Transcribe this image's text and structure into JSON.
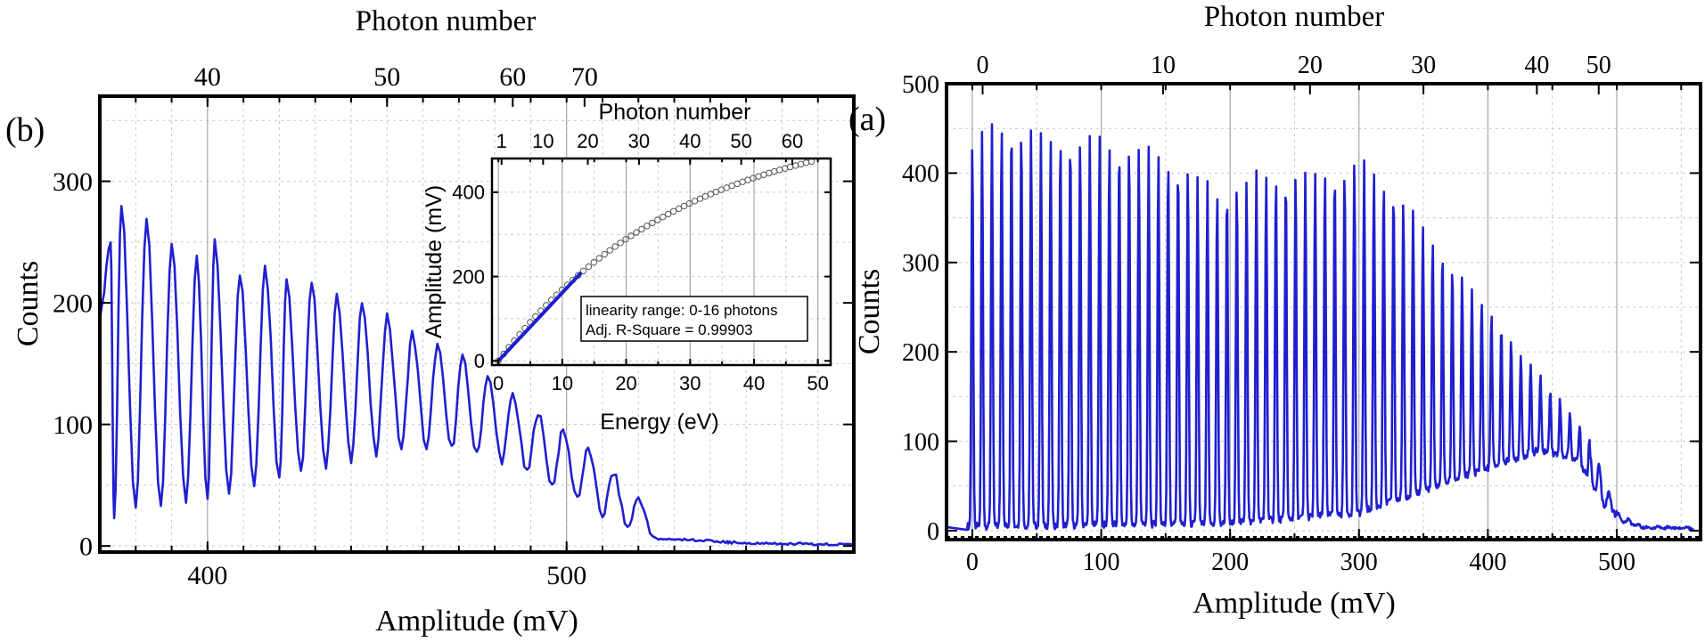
{
  "chart_data": [
    {
      "panel": "(b)",
      "type": "line",
      "xlabel": "Amplitude (mV)",
      "ylabel": "Counts",
      "top_axis_label": "Photon number",
      "xlim": [
        370,
        580
      ],
      "ylim": [
        -5,
        370
      ],
      "xticks": [
        400,
        500
      ],
      "yticks": [
        0,
        100,
        200,
        300
      ],
      "top_ticks": [
        {
          "label": "40",
          "x": 400
        },
        {
          "label": "50",
          "x": 450
        },
        {
          "label": "60",
          "x": 485
        },
        {
          "label": "70",
          "x": 505
        }
      ],
      "series": [
        {
          "name": "Counts",
          "color": "#1f1fd0",
          "peak_spacing_mV": 7.0,
          "first_peak_mV": 376,
          "peaks": [
            [
              373,
              250
            ],
            [
              376,
              280
            ],
            [
              383,
              270
            ],
            [
              390,
              248
            ],
            [
              397,
              237
            ],
            [
              402,
              250
            ],
            [
              409,
              225
            ],
            [
              416,
              230
            ],
            [
              422,
              220
            ],
            [
              429,
              215
            ],
            [
              436,
              205
            ],
            [
              443,
              200
            ],
            [
              450,
              190
            ],
            [
              457,
              175
            ],
            [
              464,
              165
            ],
            [
              471,
              155
            ],
            [
              478,
              140
            ],
            [
              485,
              125
            ],
            [
              492,
              110
            ],
            [
              499,
              95
            ],
            [
              506,
              80
            ],
            [
              513,
              60
            ],
            [
              520,
              40
            ]
          ],
          "valleys": [
            [
              370,
              190
            ],
            [
              374,
              20
            ],
            [
              380,
              30
            ],
            [
              387,
              30
            ],
            [
              394,
              35
            ],
            [
              400,
              40
            ],
            [
              406,
              45
            ],
            [
              413,
              50
            ],
            [
              420,
              55
            ],
            [
              426,
              60
            ],
            [
              433,
              65
            ],
            [
              440,
              70
            ],
            [
              447,
              75
            ],
            [
              454,
              80
            ],
            [
              461,
              80
            ],
            [
              468,
              80
            ],
            [
              475,
              75
            ],
            [
              482,
              70
            ],
            [
              489,
              60
            ],
            [
              496,
              50
            ],
            [
              503,
              40
            ],
            [
              510,
              25
            ],
            [
              517,
              15
            ],
            [
              524,
              8
            ]
          ],
          "tail": [
            [
              530,
              5
            ],
            [
              545,
              2
            ],
            [
              560,
              1
            ],
            [
              580,
              0
            ]
          ]
        }
      ],
      "inset": {
        "type": "scatter",
        "xlabel": "Energy (eV)",
        "ylabel": "Amplitude (mV)",
        "top_axis_label": "Photon number",
        "xlim": [
          -1,
          52
        ],
        "ylim": [
          -10,
          480
        ],
        "xticks": [
          0,
          10,
          20,
          30,
          40,
          50
        ],
        "yticks": [
          0,
          200,
          400
        ],
        "top_ticks": [
          {
            "label": "1",
            "x": 0.5
          },
          {
            "label": "10",
            "x": 7
          },
          {
            "label": "20",
            "x": 14
          },
          {
            "label": "30",
            "x": 22
          },
          {
            "label": "40",
            "x": 30
          },
          {
            "label": "50",
            "x": 38
          },
          {
            "label": "60",
            "x": 46
          }
        ],
        "points_x_range": [
          0,
          49
        ],
        "points_count": 60,
        "points_model": "saturating: 580*(1 - exp(-E/29))",
        "fit": {
          "x": [
            0,
            13
          ],
          "y": [
            0,
            210
          ],
          "color": "#1f1fd0"
        },
        "legend": {
          "line1": "linearity range: 0-16 photons",
          "line2": "Adj. R-Square = 0.99903"
        }
      }
    },
    {
      "panel": "(a)",
      "type": "line",
      "xlabel": "Amplitude (mV)",
      "ylabel": "Counts",
      "top_axis_label": "Photon number",
      "xlim": [
        -20,
        565
      ],
      "ylim": [
        -10,
        500
      ],
      "xticks": [
        0,
        100,
        200,
        300,
        400,
        500
      ],
      "yticks": [
        0,
        100,
        200,
        300,
        400,
        500
      ],
      "top_ticks": [
        {
          "label": "0",
          "x": 8
        },
        {
          "label": "10",
          "x": 148
        },
        {
          "label": "20",
          "x": 262
        },
        {
          "label": "30",
          "x": 350
        },
        {
          "label": "40",
          "x": 438
        },
        {
          "label": "50",
          "x": 486
        }
      ],
      "series": [
        {
          "name": "Counts",
          "color": "#1f1fd0",
          "peak_spacing_mV": 7.6,
          "first_peak_mV": 0,
          "envelope": [
            [
              0,
              438
            ],
            [
              15,
              455
            ],
            [
              30,
              460
            ],
            [
              60,
              440
            ],
            [
              100,
              440
            ],
            [
              130,
              430
            ],
            [
              160,
              415
            ],
            [
              190,
              380
            ],
            [
              220,
              400
            ],
            [
              260,
              400
            ],
            [
              300,
              415
            ],
            [
              330,
              380
            ],
            [
              360,
              320
            ],
            [
              400,
              250
            ],
            [
              430,
              190
            ],
            [
              460,
              140
            ],
            [
              480,
              100
            ],
            [
              500,
              20
            ],
            [
              520,
              5
            ],
            [
              565,
              3
            ]
          ],
          "baseline": [
            [
              0,
              5
            ],
            [
              200,
              8
            ],
            [
              300,
              20
            ],
            [
              350,
              45
            ],
            [
              400,
              70
            ],
            [
              440,
              90
            ],
            [
              470,
              80
            ],
            [
              490,
              30
            ],
            [
              510,
              5
            ],
            [
              565,
              2
            ]
          ]
        }
      ]
    }
  ],
  "panel_labels": {
    "b": "(b)",
    "a": "(a)"
  }
}
